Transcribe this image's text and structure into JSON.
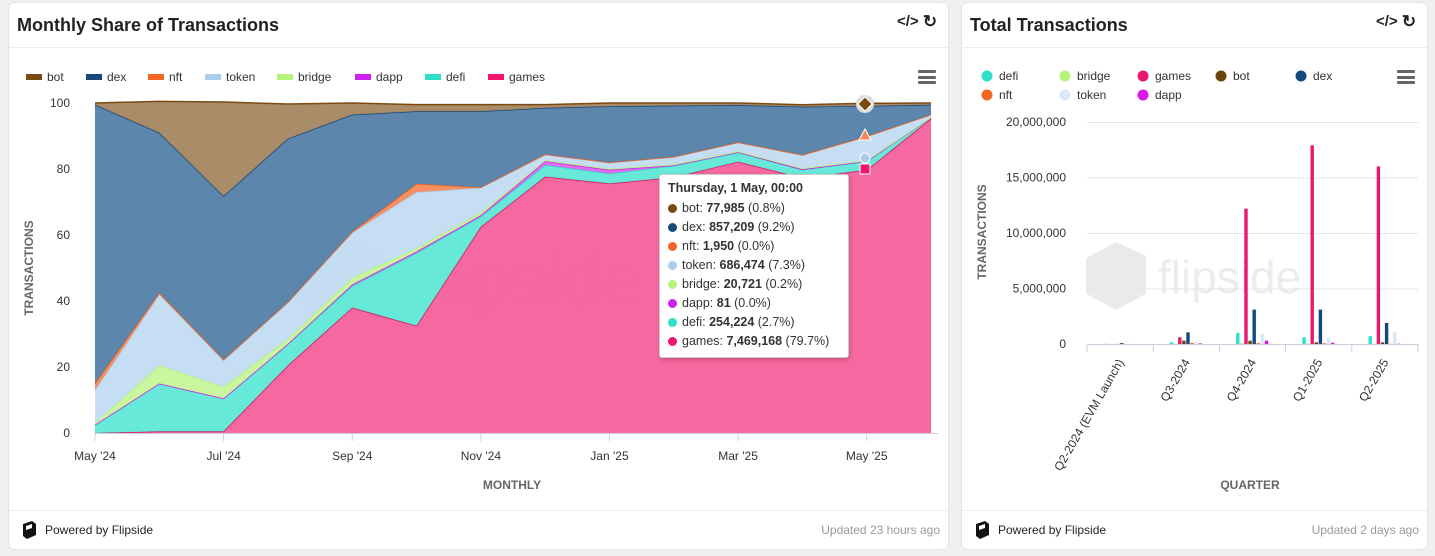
{
  "left": {
    "title": "Monthly Share of Transactions",
    "powered": "Powered by Flipside",
    "updated": "Updated 23 hours ago",
    "watermark": "flipside"
  },
  "right": {
    "title": "Total Transactions",
    "powered": "Powered by Flipside",
    "updated": "Updated 2 days ago",
    "watermark": "flipside"
  },
  "icons": {
    "embed": "code-icon",
    "refresh": "refresh-icon",
    "menu": "hamburger-menu-icon",
    "logo": "flipside-logo-icon"
  },
  "tooltip": {
    "header": "Thursday, 1 May, 00:00",
    "rows": [
      {
        "name": "bot",
        "value": "77,985",
        "pct": "(0.8%)",
        "color": "#7a4a12"
      },
      {
        "name": "dex",
        "value": "857,209",
        "pct": "(9.2%)",
        "color": "#17497a"
      },
      {
        "name": "nft",
        "value": "1,950",
        "pct": "(0.0%)",
        "color": "#f26522"
      },
      {
        "name": "token",
        "value": "686,474",
        "pct": "(7.3%)",
        "color": "#a9cdea"
      },
      {
        "name": "bridge",
        "value": "20,721",
        "pct": "(0.2%)",
        "color": "#b6f27c"
      },
      {
        "name": "dapp",
        "value": "81",
        "pct": "(0.0%)",
        "color": "#cc22ee"
      },
      {
        "name": "defi",
        "value": "254,224",
        "pct": "(2.7%)",
        "color": "#2fe0c8"
      },
      {
        "name": "games",
        "value": "7,469,168",
        "pct": "(79.7%)",
        "color": "#f01670"
      }
    ]
  },
  "chart_data": [
    {
      "type": "area",
      "stacking": "percent",
      "title": "Monthly Share of Transactions",
      "xlabel": "MONTHLY",
      "ylabel": "TRANSACTIONS",
      "ylim": [
        0,
        100
      ],
      "yticks": [
        0,
        20,
        40,
        60,
        80,
        100
      ],
      "x": [
        "May '24",
        "Jun '24",
        "Jul '24",
        "Aug '24",
        "Sep '24",
        "Oct '24",
        "Nov '24",
        "Dec '24",
        "Jan '25",
        "Feb '25",
        "Mar '25",
        "Apr '25",
        "May '25",
        "Jun '25"
      ],
      "xticks": [
        "May '24",
        "Jul '24",
        "Sep '24",
        "Nov '24",
        "Jan '25",
        "Mar '25",
        "May '25"
      ],
      "legend_position": "top",
      "series": [
        {
          "name": "bot",
          "color": "#a68660",
          "values": [
            0.5,
            9.5,
            28.5,
            10.5,
            3.5,
            2,
            2,
            1,
            1,
            0.8,
            0.6,
            0.6,
            0.8,
            0.5
          ]
        },
        {
          "name": "dex",
          "color": "#5480a8",
          "values": [
            84.5,
            48.5,
            49.5,
            49.5,
            35.5,
            22,
            23,
            14,
            17,
            15.5,
            11.3,
            14.6,
            9.2,
            3
          ]
        },
        {
          "name": "nft",
          "color": "#f5895a",
          "values": [
            2,
            0.5,
            0.3,
            0.2,
            0.3,
            2.5,
            0.2,
            0.2,
            0.1,
            0.1,
            0.1,
            0.1,
            0,
            0
          ]
        },
        {
          "name": "token",
          "color": "#c2dcf2",
          "values": [
            10,
            21.5,
            8,
            11,
            13.7,
            17,
            7.5,
            1.6,
            1.8,
            2.2,
            2.6,
            4,
            7.3,
            0.8
          ]
        },
        {
          "name": "bridge",
          "color": "#c6f59a",
          "values": [
            0.5,
            5.5,
            3.5,
            1.5,
            2,
            1,
            0.8,
            0.3,
            0.3,
            0.3,
            0.3,
            0.3,
            0.2,
            0.1
          ]
        },
        {
          "name": "dapp",
          "color": "#dd66f2",
          "values": [
            0,
            0,
            0,
            0,
            0.5,
            0.5,
            0.5,
            1.2,
            1.2,
            0.1,
            0.1,
            0.1,
            0,
            0
          ]
        },
        {
          "name": "defi",
          "color": "#5ee8d6",
          "values": [
            2.5,
            14.5,
            10,
            6.5,
            6.5,
            22,
            3,
            3.5,
            3,
            3.5,
            2.8,
            2.5,
            2.7,
            0.3
          ]
        },
        {
          "name": "games",
          "color": "#f5609b",
          "values": [
            0,
            0.5,
            0.5,
            20.5,
            38,
            32.5,
            62.5,
            77.7,
            75.6,
            77.5,
            82.2,
            77.3,
            79.7,
            95.3
          ]
        }
      ]
    },
    {
      "type": "bar",
      "title": "Total Transactions",
      "xlabel": "QUARTER",
      "ylabel": "TRANSACTIONS",
      "ylim": [
        0,
        20000000
      ],
      "yticks": [
        "0",
        "5,000,000",
        "10,000,000",
        "15,000,000",
        "20,000,000"
      ],
      "categories": [
        "Q2-2024 (EVM Launch)",
        "Q3-2024",
        "Q4-2024",
        "Q1-2025",
        "Q2-2025"
      ],
      "legend_position": "top",
      "series": [
        {
          "name": "defi",
          "color": "#2fe0c8",
          "values": [
            20000,
            150000,
            1000000,
            600000,
            700000
          ]
        },
        {
          "name": "bridge",
          "color": "#b6f27c",
          "values": [
            5000,
            40000,
            80000,
            50000,
            30000
          ]
        },
        {
          "name": "games",
          "color": "#e8186e",
          "values": [
            0,
            600000,
            12200000,
            17900000,
            16000000
          ]
        },
        {
          "name": "bot",
          "color": "#6b4410",
          "values": [
            10000,
            300000,
            300000,
            150000,
            150000
          ]
        },
        {
          "name": "dex",
          "color": "#124a80",
          "values": [
            80000,
            1050000,
            3100000,
            3100000,
            1900000
          ]
        },
        {
          "name": "nft",
          "color": "#f26522",
          "values": [
            5000,
            100000,
            80000,
            60000,
            20000
          ]
        },
        {
          "name": "token",
          "color": "#dbe8f7",
          "values": [
            30000,
            200000,
            900000,
            550000,
            1100000
          ]
        },
        {
          "name": "dapp",
          "color": "#d91ae6",
          "values": [
            0,
            50000,
            300000,
            120000,
            30000
          ]
        }
      ]
    }
  ]
}
